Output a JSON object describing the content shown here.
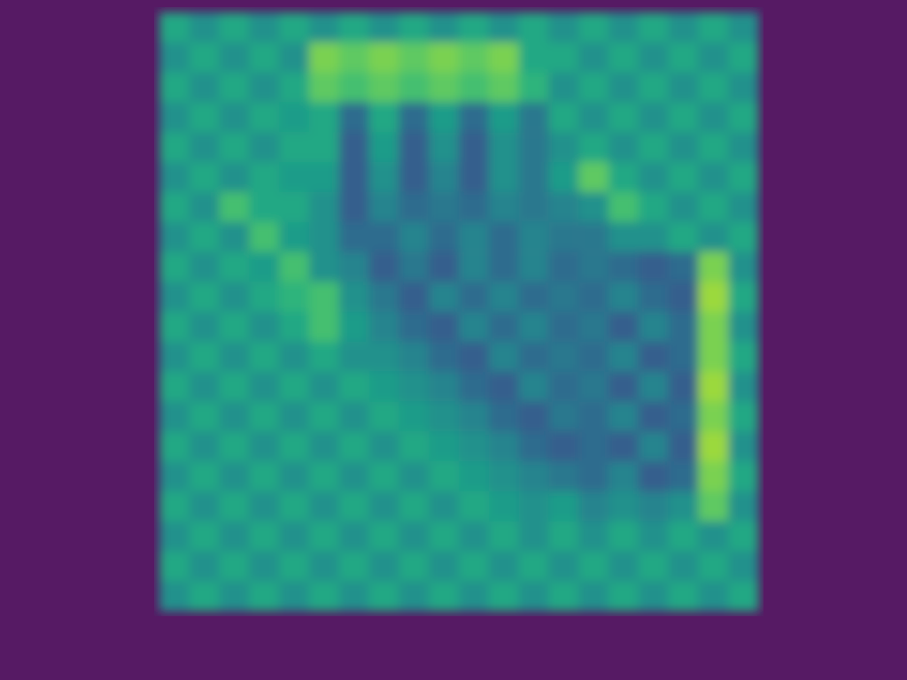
{
  "chart_data": {
    "type": "heatmap",
    "color": "viridis",
    "tick_labels": false,
    "color_range": [
      0,
      1
    ],
    "cells": [
      [
        0.6,
        0.5,
        0.6,
        0.5,
        0.6,
        0.5,
        0.6,
        0.5,
        0.6,
        0.5,
        0.6,
        0.5,
        0.6,
        0.5,
        0.6,
        0.5,
        0.6,
        0.5,
        0.6,
        0.5
      ],
      [
        0.5,
        0.6,
        0.5,
        0.6,
        0.5,
        0.8,
        0.75,
        0.8,
        0.75,
        0.8,
        0.75,
        0.8,
        0.6,
        0.6,
        0.5,
        0.6,
        0.5,
        0.6,
        0.5,
        0.6
      ],
      [
        0.6,
        0.5,
        0.6,
        0.5,
        0.6,
        0.75,
        0.7,
        0.75,
        0.7,
        0.75,
        0.7,
        0.75,
        0.65,
        0.5,
        0.6,
        0.5,
        0.6,
        0.5,
        0.6,
        0.5
      ],
      [
        0.5,
        0.6,
        0.5,
        0.6,
        0.55,
        0.6,
        0.35,
        0.6,
        0.35,
        0.55,
        0.35,
        0.55,
        0.4,
        0.6,
        0.5,
        0.6,
        0.5,
        0.6,
        0.5,
        0.6
      ],
      [
        0.6,
        0.5,
        0.6,
        0.5,
        0.6,
        0.6,
        0.3,
        0.55,
        0.3,
        0.5,
        0.3,
        0.5,
        0.4,
        0.5,
        0.6,
        0.5,
        0.6,
        0.5,
        0.6,
        0.5
      ],
      [
        0.5,
        0.6,
        0.5,
        0.6,
        0.55,
        0.55,
        0.3,
        0.5,
        0.3,
        0.45,
        0.3,
        0.5,
        0.4,
        0.55,
        0.75,
        0.6,
        0.5,
        0.6,
        0.5,
        0.6
      ],
      [
        0.6,
        0.5,
        0.7,
        0.6,
        0.6,
        0.5,
        0.3,
        0.45,
        0.35,
        0.4,
        0.35,
        0.45,
        0.4,
        0.45,
        0.5,
        0.7,
        0.6,
        0.5,
        0.6,
        0.5
      ],
      [
        0.5,
        0.6,
        0.5,
        0.7,
        0.55,
        0.5,
        0.35,
        0.35,
        0.45,
        0.35,
        0.45,
        0.35,
        0.45,
        0.4,
        0.4,
        0.5,
        0.5,
        0.6,
        0.5,
        0.6
      ],
      [
        0.6,
        0.5,
        0.6,
        0.55,
        0.7,
        0.5,
        0.45,
        0.3,
        0.4,
        0.3,
        0.45,
        0.35,
        0.45,
        0.35,
        0.4,
        0.35,
        0.3,
        0.35,
        0.8,
        0.5
      ],
      [
        0.5,
        0.6,
        0.5,
        0.6,
        0.65,
        0.7,
        0.5,
        0.4,
        0.3,
        0.45,
        0.35,
        0.45,
        0.35,
        0.4,
        0.35,
        0.45,
        0.35,
        0.3,
        0.85,
        0.6
      ],
      [
        0.6,
        0.5,
        0.6,
        0.5,
        0.6,
        0.7,
        0.55,
        0.45,
        0.35,
        0.3,
        0.45,
        0.35,
        0.45,
        0.35,
        0.4,
        0.3,
        0.45,
        0.35,
        0.8,
        0.5
      ],
      [
        0.5,
        0.6,
        0.5,
        0.6,
        0.5,
        0.6,
        0.5,
        0.5,
        0.45,
        0.35,
        0.3,
        0.45,
        0.35,
        0.4,
        0.35,
        0.45,
        0.3,
        0.35,
        0.8,
        0.6
      ],
      [
        0.6,
        0.5,
        0.6,
        0.5,
        0.6,
        0.5,
        0.6,
        0.55,
        0.5,
        0.45,
        0.35,
        0.3,
        0.45,
        0.35,
        0.4,
        0.3,
        0.45,
        0.3,
        0.85,
        0.5
      ],
      [
        0.5,
        0.6,
        0.5,
        0.6,
        0.5,
        0.6,
        0.5,
        0.6,
        0.55,
        0.5,
        0.45,
        0.35,
        0.3,
        0.4,
        0.35,
        0.45,
        0.3,
        0.35,
        0.8,
        0.6
      ],
      [
        0.6,
        0.5,
        0.6,
        0.5,
        0.6,
        0.5,
        0.6,
        0.5,
        0.6,
        0.55,
        0.5,
        0.45,
        0.35,
        0.3,
        0.35,
        0.3,
        0.45,
        0.3,
        0.85,
        0.5
      ],
      [
        0.5,
        0.6,
        0.5,
        0.6,
        0.5,
        0.6,
        0.5,
        0.6,
        0.5,
        0.6,
        0.55,
        0.5,
        0.45,
        0.4,
        0.35,
        0.45,
        0.3,
        0.35,
        0.8,
        0.6
      ],
      [
        0.6,
        0.5,
        0.6,
        0.5,
        0.6,
        0.5,
        0.6,
        0.5,
        0.6,
        0.5,
        0.6,
        0.55,
        0.5,
        0.55,
        0.45,
        0.5,
        0.45,
        0.5,
        0.75,
        0.5
      ],
      [
        0.5,
        0.6,
        0.5,
        0.6,
        0.5,
        0.6,
        0.5,
        0.6,
        0.5,
        0.6,
        0.5,
        0.6,
        0.5,
        0.6,
        0.5,
        0.6,
        0.5,
        0.6,
        0.5,
        0.6
      ],
      [
        0.6,
        0.5,
        0.6,
        0.5,
        0.6,
        0.5,
        0.6,
        0.5,
        0.6,
        0.5,
        0.6,
        0.5,
        0.6,
        0.5,
        0.6,
        0.5,
        0.6,
        0.5,
        0.6,
        0.5
      ],
      [
        0.5,
        0.6,
        0.5,
        0.6,
        0.5,
        0.6,
        0.5,
        0.6,
        0.5,
        0.6,
        0.5,
        0.6,
        0.5,
        0.6,
        0.5,
        0.6,
        0.5,
        0.6,
        0.5,
        0.6
      ]
    ]
  }
}
